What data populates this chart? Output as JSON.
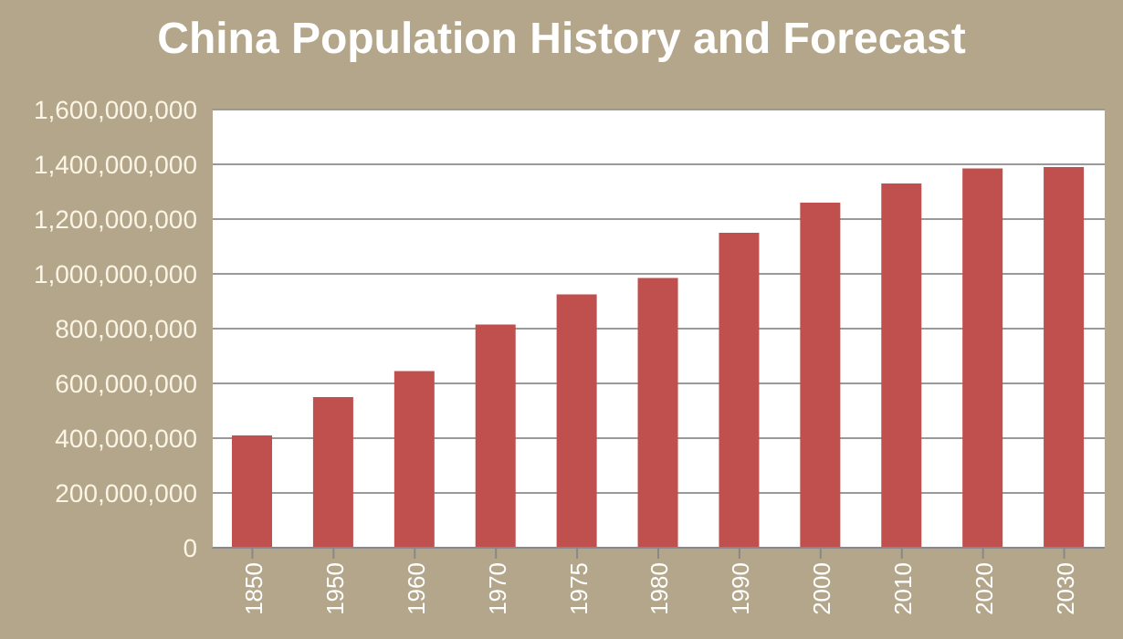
{
  "chart_data": {
    "type": "bar",
    "title": "China Population History and Forecast",
    "categories": [
      "1850",
      "1950",
      "1960",
      "1970",
      "1975",
      "1980",
      "1990",
      "2000",
      "2010",
      "2020",
      "2030"
    ],
    "values": [
      410000000,
      550000000,
      645000000,
      815000000,
      925000000,
      985000000,
      1150000000,
      1260000000,
      1330000000,
      1385000000,
      1390000000
    ],
    "color": "#c0504d",
    "ylim": [
      0,
      1600000000
    ],
    "yticks": [
      0,
      {
        "value": 200000000,
        "label": "200,000,000"
      },
      {
        "value": 400000000,
        "label": "400,000,000"
      },
      {
        "value": 600000000,
        "label": "600,000,000"
      },
      {
        "value": 800000000,
        "label": "800,000,000"
      },
      {
        "value": 1000000000,
        "label": "1,000,000,000"
      },
      {
        "value": 1200000000,
        "label": "1,200,000,000"
      },
      {
        "value": 1400000000,
        "label": "1,400,000,000"
      },
      {
        "value": 1600000000,
        "label": "1,600,000,000"
      }
    ],
    "grid": "y"
  }
}
